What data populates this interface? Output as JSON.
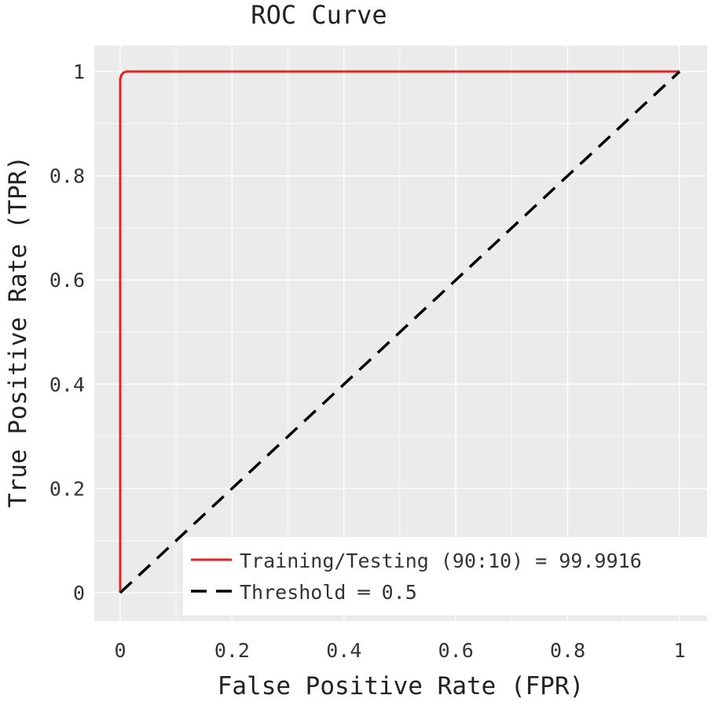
{
  "chart_data": {
    "type": "line",
    "title": "ROC Curve",
    "xlabel": "False Positive Rate (FPR)",
    "ylabel": "True Positive Rate (TPR)",
    "xlim": [
      0,
      1
    ],
    "ylim": [
      0,
      1
    ],
    "grid": true,
    "x_ticks": [
      0,
      0.2,
      0.4,
      0.6,
      0.8,
      1
    ],
    "x_tick_labels": [
      "0",
      "0.2",
      "0.4",
      "0.6",
      "0.8",
      "1"
    ],
    "y_ticks": [
      0,
      0.2,
      0.4,
      0.6,
      0.8,
      1
    ],
    "y_tick_labels": [
      "0",
      "0.2",
      "0.4",
      "0.6",
      "0.8",
      "1"
    ],
    "legend_position": "bottom-right",
    "series": [
      {
        "name": "Training/Testing (90:10) = 99.9916",
        "style": "solid",
        "color": "#e8201f",
        "x": [
          0,
          0,
          0.002,
          0.006,
          0.012,
          0.05,
          1
        ],
        "y": [
          0,
          0.985,
          0.993,
          0.998,
          1,
          1,
          1
        ]
      },
      {
        "name": "Threshold = 0.5",
        "legend_label": "Threshold ═ 0.5",
        "style": "dashed",
        "color": "#000000",
        "x": [
          0,
          1
        ],
        "y": [
          0,
          1
        ]
      }
    ]
  }
}
